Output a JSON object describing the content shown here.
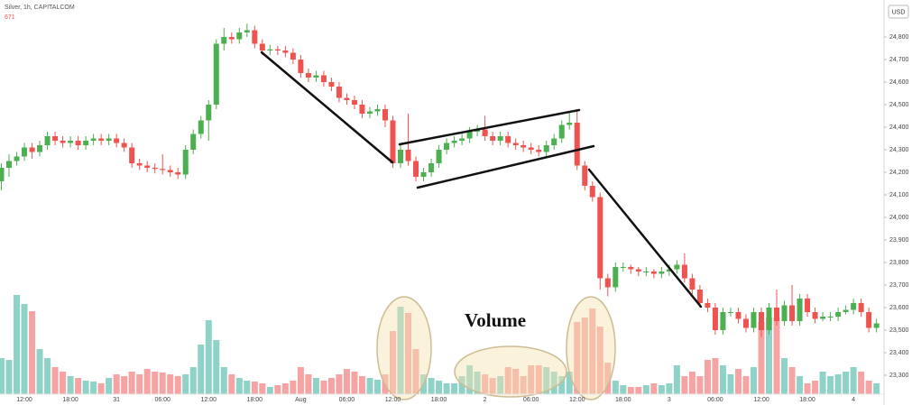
{
  "chart_data": {
    "type": "candlestick",
    "title": "Silver, 1h, CAPITALCOM",
    "subtitle": "671",
    "currency": "USD",
    "annotation": "Volume",
    "categories": [
      null,
      null,
      null,
      "12:00",
      null,
      null,
      null,
      null,
      null,
      "18:00",
      null,
      null,
      null,
      null,
      null,
      "31",
      null,
      null,
      null,
      null,
      null,
      "06:00",
      null,
      null,
      null,
      null,
      null,
      "12:00",
      null,
      null,
      null,
      null,
      null,
      "18:00",
      null,
      null,
      null,
      null,
      null,
      "Aug",
      null,
      null,
      null,
      null,
      null,
      "06:00",
      null,
      null,
      null,
      null,
      null,
      "12:00",
      null,
      null,
      null,
      null,
      null,
      "18:00",
      null,
      null,
      null,
      null,
      null,
      "2",
      null,
      null,
      null,
      null,
      null,
      "06:00",
      null,
      null,
      null,
      null,
      null,
      "12:00",
      null,
      null,
      null,
      null,
      null,
      "18:00",
      null,
      null,
      null,
      null,
      null,
      "3",
      null,
      null,
      null,
      null,
      null,
      "06:00",
      null,
      null,
      null,
      null,
      null,
      "12:00",
      null,
      null,
      null,
      null,
      null,
      "18:00",
      null,
      null,
      null,
      null,
      null,
      "4",
      null,
      null,
      null
    ],
    "open": [
      24160,
      24220,
      24250,
      24270,
      24310,
      24290,
      24320,
      24360,
      24340,
      24330,
      24340,
      24320,
      24340,
      24350,
      24340,
      24350,
      24330,
      24310,
      24240,
      24230,
      24220,
      24215,
      24210,
      24200,
      24190,
      24300,
      24370,
      24430,
      24500,
      24770,
      24800,
      24790,
      24820,
      24830,
      24770,
      24740,
      24745,
      24740,
      24730,
      24700,
      24640,
      24620,
      24630,
      24600,
      24580,
      24530,
      24520,
      24500,
      24460,
      24470,
      24480,
      24430,
      24240,
      24300,
      24250,
      24180,
      24200,
      24240,
      24300,
      24330,
      24340,
      24350,
      24380,
      24390,
      24360,
      24340,
      24360,
      24330,
      24320,
      24310,
      24300,
      24290,
      24320,
      24350,
      24410,
      24420,
      24230,
      24140,
      24090,
      23730,
      23690,
      23780,
      23780,
      23770,
      23760,
      23760,
      23750,
      23760,
      23770,
      23790,
      23730,
      23680,
      23620,
      23600,
      23500,
      23580,
      23580,
      23550,
      23510,
      23580,
      23500,
      23600,
      23540,
      23610,
      23540,
      23640,
      23580,
      23550,
      23560,
      23560,
      23580,
      23590,
      23620,
      23580,
      23510
    ],
    "high": [
      24240,
      24280,
      24290,
      24330,
      24330,
      24340,
      24380,
      24380,
      24360,
      24360,
      24360,
      24360,
      24370,
      24370,
      24370,
      24370,
      24350,
      24330,
      24260,
      24250,
      24240,
      24280,
      24230,
      24220,
      24320,
      24390,
      24450,
      24520,
      24790,
      24840,
      24820,
      24840,
      24860,
      24850,
      24790,
      24765,
      24760,
      24760,
      24750,
      24720,
      24660,
      24650,
      24650,
      24620,
      24600,
      24550,
      24540,
      24520,
      24490,
      24500,
      24500,
      24450,
      24320,
      24460,
      24270,
      24220,
      24260,
      24320,
      24350,
      24360,
      24380,
      24400,
      24410,
      24450,
      24380,
      24380,
      24380,
      24350,
      24340,
      24330,
      24320,
      24340,
      24370,
      24430,
      24470,
      24480,
      24250,
      24160,
      24110,
      23750,
      23800,
      23800,
      23790,
      23780,
      23780,
      23770,
      23780,
      23790,
      23810,
      23840,
      23750,
      23700,
      23640,
      23620,
      23600,
      23600,
      23600,
      23570,
      23600,
      23600,
      23620,
      23680,
      23630,
      23700,
      23660,
      23660,
      23600,
      23580,
      23580,
      23600,
      23610,
      23640,
      23640,
      23600,
      23550
    ],
    "low": [
      24120,
      24180,
      24230,
      24250,
      24260,
      24270,
      24300,
      24320,
      24310,
      24310,
      24300,
      24300,
      24320,
      24320,
      24320,
      24310,
      24290,
      24220,
      24210,
      24200,
      24195,
      24190,
      24180,
      24170,
      24170,
      24280,
      24350,
      24340,
      24480,
      24740,
      24770,
      24770,
      24800,
      24750,
      24720,
      24720,
      24720,
      24710,
      24680,
      24620,
      24600,
      24600,
      24580,
      24560,
      24510,
      24500,
      24480,
      24440,
      24440,
      24450,
      24400,
      24220,
      24220,
      24230,
      24160,
      24160,
      24180,
      24220,
      24280,
      24310,
      24320,
      24330,
      24360,
      24340,
      24320,
      24320,
      24310,
      24300,
      24290,
      24280,
      24270,
      24270,
      24300,
      24330,
      24390,
      24210,
      24120,
      24070,
      23680,
      23650,
      23670,
      23760,
      23750,
      23740,
      23740,
      23730,
      23730,
      23740,
      23750,
      23710,
      23660,
      23600,
      23580,
      23480,
      23480,
      23560,
      23530,
      23490,
      23490,
      23470,
      23480,
      23520,
      23520,
      23520,
      23520,
      23560,
      23530,
      23540,
      23540,
      23540,
      23570,
      23570,
      23560,
      23490,
      23490
    ],
    "close": [
      24220,
      24250,
      24270,
      24310,
      24290,
      24320,
      24360,
      24340,
      24330,
      24340,
      24320,
      24340,
      24350,
      24340,
      24350,
      24330,
      24310,
      24240,
      24230,
      24220,
      24215,
      24210,
      24200,
      24190,
      24300,
      24370,
      24430,
      24500,
      24770,
      24800,
      24790,
      24820,
      24830,
      24770,
      24740,
      24745,
      24740,
      24730,
      24700,
      24640,
      24620,
      24630,
      24600,
      24580,
      24530,
      24520,
      24500,
      24460,
      24470,
      24480,
      24430,
      24240,
      24300,
      24250,
      24180,
      24200,
      24240,
      24300,
      24330,
      24340,
      24350,
      24380,
      24390,
      24360,
      24340,
      24360,
      24330,
      24320,
      24310,
      24300,
      24290,
      24320,
      24350,
      24410,
      24420,
      24230,
      24140,
      24090,
      23730,
      23690,
      23780,
      23780,
      23770,
      23760,
      23760,
      23750,
      23760,
      23770,
      23790,
      23730,
      23680,
      23620,
      23600,
      23500,
      23580,
      23580,
      23550,
      23510,
      23580,
      23500,
      23600,
      23540,
      23610,
      23540,
      23640,
      23580,
      23550,
      23560,
      23560,
      23580,
      23590,
      23620,
      23580,
      23510,
      23530
    ],
    "volume": [
      40,
      38,
      110,
      100,
      92,
      50,
      40,
      30,
      25,
      20,
      18,
      15,
      14,
      12,
      18,
      22,
      20,
      25,
      22,
      28,
      25,
      24,
      22,
      20,
      22,
      30,
      55,
      82,
      60,
      30,
      22,
      18,
      15,
      14,
      12,
      8,
      10,
      12,
      15,
      30,
      22,
      18,
      15,
      18,
      22,
      28,
      25,
      20,
      18,
      16,
      22,
      70,
      97,
      90,
      50,
      22,
      18,
      15,
      12,
      12,
      20,
      32,
      25,
      22,
      18,
      20,
      30,
      28,
      20,
      32,
      32,
      30,
      25,
      20,
      25,
      80,
      85,
      95,
      75,
      35,
      15,
      10,
      8,
      8,
      10,
      12,
      10,
      12,
      32,
      20,
      25,
      20,
      38,
      40,
      32,
      22,
      28,
      20,
      30,
      80,
      85,
      85,
      40,
      30,
      20,
      12,
      15,
      25,
      20,
      22,
      25,
      30,
      25,
      15,
      12
    ],
    "up_color": "#4caf50",
    "down_color": "#ef5350",
    "volume_up_color": "#8fd3c8",
    "volume_down_color": "#f5a3a3",
    "ylim": [
      23216,
      24964
    ],
    "yticks": [
      {
        "value": 23300,
        "label": "23,300"
      },
      {
        "value": 23400,
        "label": "23,400"
      },
      {
        "value": 23500,
        "label": "23,500"
      },
      {
        "value": 23600,
        "label": "23,600"
      },
      {
        "value": 23700,
        "label": "23,700"
      },
      {
        "value": 23800,
        "label": "23,800"
      },
      {
        "value": 23900,
        "label": "23,900"
      },
      {
        "value": 24000,
        "label": "24,000"
      },
      {
        "value": 24100,
        "label": "24,100"
      },
      {
        "value": 24200,
        "label": "24,200"
      },
      {
        "value": 24300,
        "label": "24,300"
      },
      {
        "value": 24400,
        "label": "24,400"
      },
      {
        "value": 24500,
        "label": "24,500"
      },
      {
        "value": 24600,
        "label": "24,600"
      },
      {
        "value": 24700,
        "label": "24,700"
      },
      {
        "value": 24800,
        "label": "24,800"
      }
    ],
    "grid": false
  }
}
